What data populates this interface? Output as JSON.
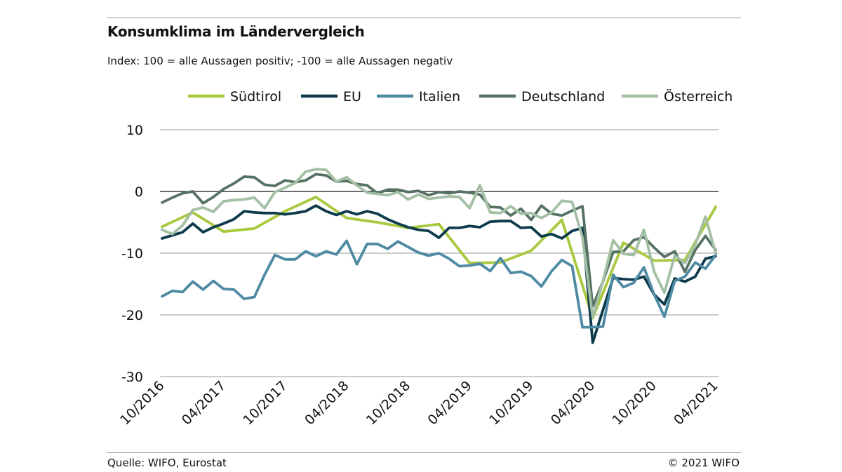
{
  "header": {
    "title": "Konsumklima im Ländervergleich",
    "subtitle": "Index: 100 = alle Aussagen positiv; -100 =  alle Aussagen negativ"
  },
  "footer": {
    "source": "Quelle: WIFO, Eurostat",
    "copyright": "© 2021 WIFO"
  },
  "chart_data": {
    "type": "line",
    "title": "Konsumklima im Ländervergleich",
    "subtitle": "Index: 100 = alle Aussagen positiv; -100 =  alle Aussagen negativ",
    "xlabel": "",
    "ylabel": "",
    "ylim": [
      -30,
      10
    ],
    "yticks": [
      10,
      0,
      -10,
      -20,
      -30
    ],
    "xlim": [
      "2016-10",
      "2021-04"
    ],
    "xticks": [
      "10/2016",
      "04/2017",
      "10/2017",
      "04/2018",
      "10/2018",
      "04/2019",
      "10/2019",
      "04/2020",
      "10/2020",
      "04/2021"
    ],
    "grid": "horizontal",
    "legend_position": "top",
    "series": [
      {
        "name": "Südtirol",
        "color": "#a8c93e",
        "x": [
          "2016-10",
          "2017-01",
          "2017-04",
          "2017-07",
          "2017-10",
          "2018-01",
          "2018-04",
          "2018-07",
          "2018-10",
          "2019-01",
          "2019-04",
          "2019-07",
          "2019-10",
          "2020-01",
          "2020-04",
          "2020-07",
          "2020-10",
          "2021-01",
          "2021-04"
        ],
        "values": [
          -5.7,
          -3.4,
          -6.5,
          -6,
          -3.2,
          -0.9,
          -4.3,
          -5,
          -5.9,
          -5.3,
          -11.6,
          -11.5,
          -9.6,
          -4.6,
          -20.5,
          -8.3,
          -11.2,
          -11.1,
          -2.5
        ]
      },
      {
        "name": "EU",
        "color": "#0d3b4c",
        "x": [
          "2016-10",
          "2016-11",
          "2016-12",
          "2017-01",
          "2017-02",
          "2017-03",
          "2017-04",
          "2017-05",
          "2017-06",
          "2017-07",
          "2017-08",
          "2017-09",
          "2017-10",
          "2017-11",
          "2017-12",
          "2018-01",
          "2018-02",
          "2018-03",
          "2018-04",
          "2018-05",
          "2018-06",
          "2018-07",
          "2018-08",
          "2018-09",
          "2018-10",
          "2018-11",
          "2018-12",
          "2019-01",
          "2019-02",
          "2019-03",
          "2019-04",
          "2019-05",
          "2019-06",
          "2019-07",
          "2019-08",
          "2019-09",
          "2019-10",
          "2019-11",
          "2019-12",
          "2020-01",
          "2020-02",
          "2020-03",
          "2020-04",
          "2020-05",
          "2020-06",
          "2020-07",
          "2020-08",
          "2020-09",
          "2020-10",
          "2020-11",
          "2020-12",
          "2021-01",
          "2021-02",
          "2021-03",
          "2021-04"
        ],
        "values": [
          -7.6,
          -7.1,
          -6.6,
          -5.2,
          -6.6,
          -5.8,
          -5.2,
          -4.5,
          -3.2,
          -3.4,
          -3.5,
          -3.5,
          -3.7,
          -3.5,
          -3.2,
          -2.3,
          -3.2,
          -3.8,
          -3.2,
          -3.7,
          -3.2,
          -3.6,
          -4.5,
          -5.2,
          -5.8,
          -6.2,
          -6.4,
          -7.5,
          -5.9,
          -5.9,
          -5.6,
          -5.8,
          -4.9,
          -4.8,
          -4.8,
          -5.9,
          -5.8,
          -7.3,
          -6.9,
          -7.6,
          -6.4,
          -5.9,
          -24.5,
          -19.2,
          -14,
          -14.2,
          -14.3,
          -13.8,
          -16.7,
          -18.3,
          -14.1,
          -14.6,
          -13.8,
          -10.9,
          -10.5
        ]
      },
      {
        "name": "Italien",
        "color": "#4e8aa3",
        "x": [
          "2016-10",
          "2016-11",
          "2016-12",
          "2017-01",
          "2017-02",
          "2017-03",
          "2017-04",
          "2017-05",
          "2017-06",
          "2017-07",
          "2017-08",
          "2017-09",
          "2017-10",
          "2017-11",
          "2017-12",
          "2018-01",
          "2018-02",
          "2018-03",
          "2018-04",
          "2018-05",
          "2018-06",
          "2018-07",
          "2018-08",
          "2018-09",
          "2018-10",
          "2018-11",
          "2018-12",
          "2019-01",
          "2019-02",
          "2019-03",
          "2019-04",
          "2019-05",
          "2019-06",
          "2019-07",
          "2019-08",
          "2019-09",
          "2019-10",
          "2019-11",
          "2019-12",
          "2020-01",
          "2020-02",
          "2020-03",
          "2020-04",
          "2020-05",
          "2020-06",
          "2020-07",
          "2020-08",
          "2020-09",
          "2020-10",
          "2020-11",
          "2020-12",
          "2021-01",
          "2021-02",
          "2021-03",
          "2021-04"
        ],
        "values": [
          -17,
          -16.1,
          -16.3,
          -14.6,
          -15.9,
          -14.5,
          -15.8,
          -15.9,
          -17.4,
          -17.1,
          -13.5,
          -10.3,
          -11,
          -11,
          -9.7,
          -10.5,
          -9.7,
          -10.2,
          -8,
          -11.8,
          -8.5,
          -8.5,
          -9.3,
          -8.1,
          -9,
          -9.9,
          -10.4,
          -10,
          -10.9,
          -12.1,
          -12,
          -11.7,
          -12.9,
          -10.8,
          -13.2,
          -13,
          -13.7,
          -15.4,
          -12.9,
          -11.1,
          -12.1,
          -22,
          -22,
          -21.9,
          -13.5,
          -15.5,
          -14.8,
          -12.3,
          -16.7,
          -20.3,
          -14.5,
          -13.8,
          -11.5,
          -12.5,
          -10.3
        ]
      },
      {
        "name": "Deutschland",
        "color": "#557263",
        "x": [
          "2016-10",
          "2016-11",
          "2016-12",
          "2017-01",
          "2017-02",
          "2017-03",
          "2017-04",
          "2017-05",
          "2017-06",
          "2017-07",
          "2017-08",
          "2017-09",
          "2017-10",
          "2017-11",
          "2017-12",
          "2018-01",
          "2018-02",
          "2018-03",
          "2018-04",
          "2018-05",
          "2018-06",
          "2018-07",
          "2018-08",
          "2018-09",
          "2018-10",
          "2018-11",
          "2018-12",
          "2019-01",
          "2019-02",
          "2019-03",
          "2019-04",
          "2019-05",
          "2019-06",
          "2019-07",
          "2019-08",
          "2019-09",
          "2019-10",
          "2019-11",
          "2019-12",
          "2020-01",
          "2020-02",
          "2020-03",
          "2020-04",
          "2020-05",
          "2020-06",
          "2020-07",
          "2020-08",
          "2020-09",
          "2020-10",
          "2020-11",
          "2020-12",
          "2021-01",
          "2021-02",
          "2021-03",
          "2021-04"
        ],
        "values": [
          -1.8,
          -1,
          -0.3,
          0,
          -1.9,
          -0.9,
          0.4,
          1.3,
          2.4,
          2.3,
          1.1,
          0.9,
          1.8,
          1.5,
          1.8,
          2.8,
          2.6,
          1.6,
          1.7,
          1.2,
          1,
          -0.3,
          0.3,
          0.3,
          -0.1,
          0.1,
          -0.6,
          -0.1,
          -0.3,
          0,
          -0.2,
          -0.5,
          -2.5,
          -2.6,
          -3.9,
          -2.8,
          -4.6,
          -2.3,
          -3.6,
          -3.9,
          -3.1,
          -2.4,
          -18.6,
          -14.6,
          -9.8,
          -9.7,
          -7.9,
          -7.4,
          -9.1,
          -10.6,
          -9.7,
          -13,
          -9.5,
          -7.2,
          -9.5
        ]
      },
      {
        "name": "Österreich",
        "color": "#a3bfa4",
        "x": [
          "2016-10",
          "2016-11",
          "2016-12",
          "2017-01",
          "2017-02",
          "2017-03",
          "2017-04",
          "2017-05",
          "2017-06",
          "2017-07",
          "2017-08",
          "2017-09",
          "2017-10",
          "2017-11",
          "2017-12",
          "2018-01",
          "2018-02",
          "2018-03",
          "2018-04",
          "2018-05",
          "2018-06",
          "2018-07",
          "2018-08",
          "2018-09",
          "2018-10",
          "2018-11",
          "2018-12",
          "2019-01",
          "2019-02",
          "2019-03",
          "2019-04",
          "2019-05",
          "2019-06",
          "2019-07",
          "2019-08",
          "2019-09",
          "2019-10",
          "2019-11",
          "2019-12",
          "2020-01",
          "2020-02",
          "2020-03",
          "2020-04",
          "2020-05",
          "2020-06",
          "2020-07",
          "2020-08",
          "2020-09",
          "2020-10",
          "2020-11",
          "2020-12",
          "2021-01",
          "2021-02",
          "2021-03",
          "2021-04"
        ],
        "values": [
          -6.2,
          -6.9,
          -5.5,
          -3,
          -2.6,
          -3.3,
          -1.6,
          -1.4,
          -1.3,
          -1,
          -2.7,
          -0.1,
          0.6,
          1.4,
          3.2,
          3.6,
          3.5,
          1.6,
          2.3,
          1,
          -0.2,
          -0.4,
          -0.6,
          -0.1,
          -1.3,
          -0.5,
          -1.2,
          -1,
          -0.8,
          -0.9,
          -2.7,
          1,
          -3.4,
          -3.5,
          -2.4,
          -3.6,
          -3.5,
          -4.3,
          -3.4,
          -1.5,
          -1.7,
          -7.4,
          -20.4,
          -14.5,
          -7.9,
          -10.1,
          -10.3,
          -6.2,
          -13,
          -16.4,
          -10.4,
          -11.6,
          -8.6,
          -4.1,
          -10
        ]
      }
    ]
  }
}
